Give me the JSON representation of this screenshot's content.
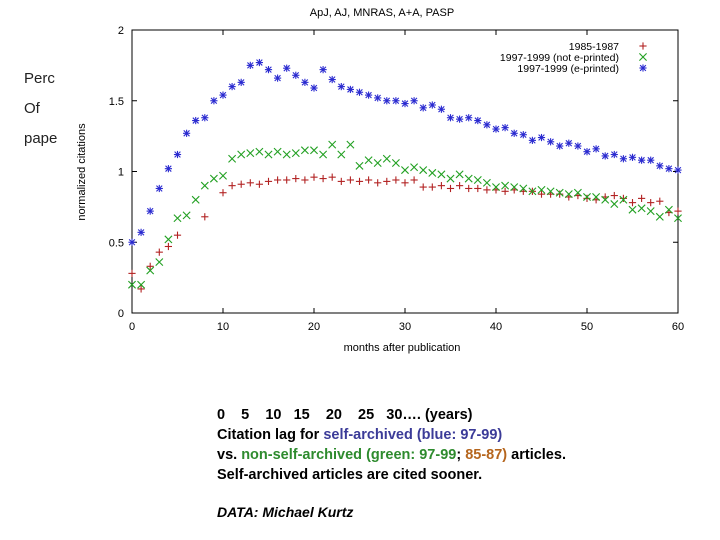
{
  "slide_fragments": [
    "Perc",
    "Of",
    "pape"
  ],
  "chart_data": {
    "type": "scatter",
    "title": "ApJ, AJ, MNRAS, A+A, PASP",
    "xlabel": "months after publication",
    "ylabel": "normalized citations",
    "xlim": [
      0,
      60
    ],
    "ylim": [
      0,
      2
    ],
    "xticks": [
      0,
      10,
      20,
      30,
      40,
      50,
      60
    ],
    "yticks": [
      0,
      0.5,
      1,
      1.5,
      2
    ],
    "ytick_labels": [
      "0",
      "0.5",
      "1",
      "1.5",
      "2"
    ],
    "grid": false,
    "legend_position": "top-right",
    "series": [
      {
        "name": "1985-1987",
        "color": "#b22222",
        "marker": "plus",
        "points": [
          [
            0,
            0.28
          ],
          [
            1,
            0.17
          ],
          [
            2,
            0.33
          ],
          [
            3,
            0.43
          ],
          [
            4,
            0.47
          ],
          [
            5,
            0.55
          ],
          [
            8,
            0.68
          ],
          [
            10,
            0.85
          ],
          [
            11,
            0.9
          ],
          [
            12,
            0.91
          ],
          [
            13,
            0.92
          ],
          [
            14,
            0.91
          ],
          [
            15,
            0.93
          ],
          [
            16,
            0.94
          ],
          [
            17,
            0.94
          ],
          [
            18,
            0.95
          ],
          [
            19,
            0.94
          ],
          [
            20,
            0.96
          ],
          [
            21,
            0.95
          ],
          [
            22,
            0.96
          ],
          [
            23,
            0.93
          ],
          [
            24,
            0.94
          ],
          [
            25,
            0.93
          ],
          [
            26,
            0.94
          ],
          [
            27,
            0.92
          ],
          [
            28,
            0.93
          ],
          [
            29,
            0.94
          ],
          [
            30,
            0.92
          ],
          [
            31,
            0.94
          ],
          [
            32,
            0.89
          ],
          [
            33,
            0.89
          ],
          [
            34,
            0.9
          ],
          [
            35,
            0.88
          ],
          [
            36,
            0.9
          ],
          [
            37,
            0.88
          ],
          [
            38,
            0.88
          ],
          [
            39,
            0.87
          ],
          [
            40,
            0.87
          ],
          [
            41,
            0.86
          ],
          [
            42,
            0.87
          ],
          [
            43,
            0.86
          ],
          [
            44,
            0.86
          ],
          [
            45,
            0.84
          ],
          [
            46,
            0.84
          ],
          [
            47,
            0.84
          ],
          [
            48,
            0.82
          ],
          [
            49,
            0.83
          ],
          [
            50,
            0.81
          ],
          [
            51,
            0.8
          ],
          [
            52,
            0.82
          ],
          [
            53,
            0.83
          ],
          [
            54,
            0.81
          ],
          [
            55,
            0.78
          ],
          [
            56,
            0.81
          ],
          [
            57,
            0.78
          ],
          [
            58,
            0.79
          ],
          [
            59,
            0.71
          ],
          [
            60,
            0.72
          ]
        ]
      },
      {
        "name": "1997-1999 (not e-printed)",
        "color": "#22a022",
        "marker": "cross",
        "points": [
          [
            0,
            0.2
          ],
          [
            1,
            0.2
          ],
          [
            2,
            0.3
          ],
          [
            3,
            0.36
          ],
          [
            4,
            0.52
          ],
          [
            5,
            0.67
          ],
          [
            6,
            0.69
          ],
          [
            7,
            0.8
          ],
          [
            8,
            0.9
          ],
          [
            9,
            0.95
          ],
          [
            10,
            0.97
          ],
          [
            11,
            1.09
          ],
          [
            12,
            1.12
          ],
          [
            13,
            1.13
          ],
          [
            14,
            1.14
          ],
          [
            15,
            1.12
          ],
          [
            16,
            1.14
          ],
          [
            17,
            1.12
          ],
          [
            18,
            1.13
          ],
          [
            19,
            1.15
          ],
          [
            20,
            1.15
          ],
          [
            21,
            1.12
          ],
          [
            22,
            1.19
          ],
          [
            23,
            1.12
          ],
          [
            24,
            1.19
          ],
          [
            25,
            1.04
          ],
          [
            26,
            1.08
          ],
          [
            27,
            1.06
          ],
          [
            28,
            1.09
          ],
          [
            29,
            1.06
          ],
          [
            30,
            1.01
          ],
          [
            31,
            1.03
          ],
          [
            32,
            1.01
          ],
          [
            33,
            0.99
          ],
          [
            34,
            0.98
          ],
          [
            35,
            0.95
          ],
          [
            36,
            0.98
          ],
          [
            37,
            0.95
          ],
          [
            38,
            0.94
          ],
          [
            39,
            0.92
          ],
          [
            40,
            0.89
          ],
          [
            41,
            0.9
          ],
          [
            42,
            0.89
          ],
          [
            43,
            0.88
          ],
          [
            44,
            0.86
          ],
          [
            45,
            0.87
          ],
          [
            46,
            0.86
          ],
          [
            47,
            0.85
          ],
          [
            48,
            0.84
          ],
          [
            49,
            0.85
          ],
          [
            50,
            0.82
          ],
          [
            51,
            0.82
          ],
          [
            52,
            0.8
          ],
          [
            53,
            0.77
          ],
          [
            54,
            0.8
          ],
          [
            55,
            0.73
          ],
          [
            56,
            0.74
          ],
          [
            57,
            0.72
          ],
          [
            58,
            0.68
          ],
          [
            59,
            0.73
          ],
          [
            60,
            0.67
          ]
        ]
      },
      {
        "name": "1997-1999 (e-printed)",
        "color": "#2a2ad0",
        "marker": "star",
        "points": [
          [
            0,
            0.5
          ],
          [
            1,
            0.57
          ],
          [
            2,
            0.72
          ],
          [
            3,
            0.88
          ],
          [
            4,
            1.02
          ],
          [
            5,
            1.12
          ],
          [
            6,
            1.27
          ],
          [
            7,
            1.36
          ],
          [
            8,
            1.38
          ],
          [
            9,
            1.5
          ],
          [
            10,
            1.54
          ],
          [
            11,
            1.6
          ],
          [
            12,
            1.63
          ],
          [
            13,
            1.75
          ],
          [
            14,
            1.77
          ],
          [
            15,
            1.72
          ],
          [
            16,
            1.66
          ],
          [
            17,
            1.73
          ],
          [
            18,
            1.68
          ],
          [
            19,
            1.63
          ],
          [
            20,
            1.59
          ],
          [
            21,
            1.72
          ],
          [
            22,
            1.65
          ],
          [
            23,
            1.6
          ],
          [
            24,
            1.58
          ],
          [
            25,
            1.56
          ],
          [
            26,
            1.54
          ],
          [
            27,
            1.52
          ],
          [
            28,
            1.5
          ],
          [
            29,
            1.5
          ],
          [
            30,
            1.48
          ],
          [
            31,
            1.5
          ],
          [
            32,
            1.45
          ],
          [
            33,
            1.47
          ],
          [
            34,
            1.44
          ],
          [
            35,
            1.38
          ],
          [
            36,
            1.37
          ],
          [
            37,
            1.38
          ],
          [
            38,
            1.36
          ],
          [
            39,
            1.33
          ],
          [
            40,
            1.3
          ],
          [
            41,
            1.31
          ],
          [
            42,
            1.27
          ],
          [
            43,
            1.26
          ],
          [
            44,
            1.22
          ],
          [
            45,
            1.24
          ],
          [
            46,
            1.21
          ],
          [
            47,
            1.18
          ],
          [
            48,
            1.2
          ],
          [
            49,
            1.18
          ],
          [
            50,
            1.14
          ],
          [
            51,
            1.16
          ],
          [
            52,
            1.11
          ],
          [
            53,
            1.12
          ],
          [
            54,
            1.09
          ],
          [
            55,
            1.1
          ],
          [
            56,
            1.08
          ],
          [
            57,
            1.08
          ],
          [
            58,
            1.04
          ],
          [
            59,
            1.02
          ],
          [
            60,
            1.01
          ]
        ]
      }
    ]
  },
  "caption": {
    "years_line": "0    5    10   15    20    25   30…. (years)",
    "line2_prefix": "Citation lag for ",
    "line2_highlight": "self-archived (blue: 97-99)",
    "line3_prefix": "vs. ",
    "line3_green": "non-self-archived (green: 97-99",
    "line3_sep": "; ",
    "line3_brown": "85-87)",
    "line3_suffix": " articles.",
    "line4": "Self-archived articles are cited sooner.",
    "credit": "DATA: Michael Kurtz"
  }
}
